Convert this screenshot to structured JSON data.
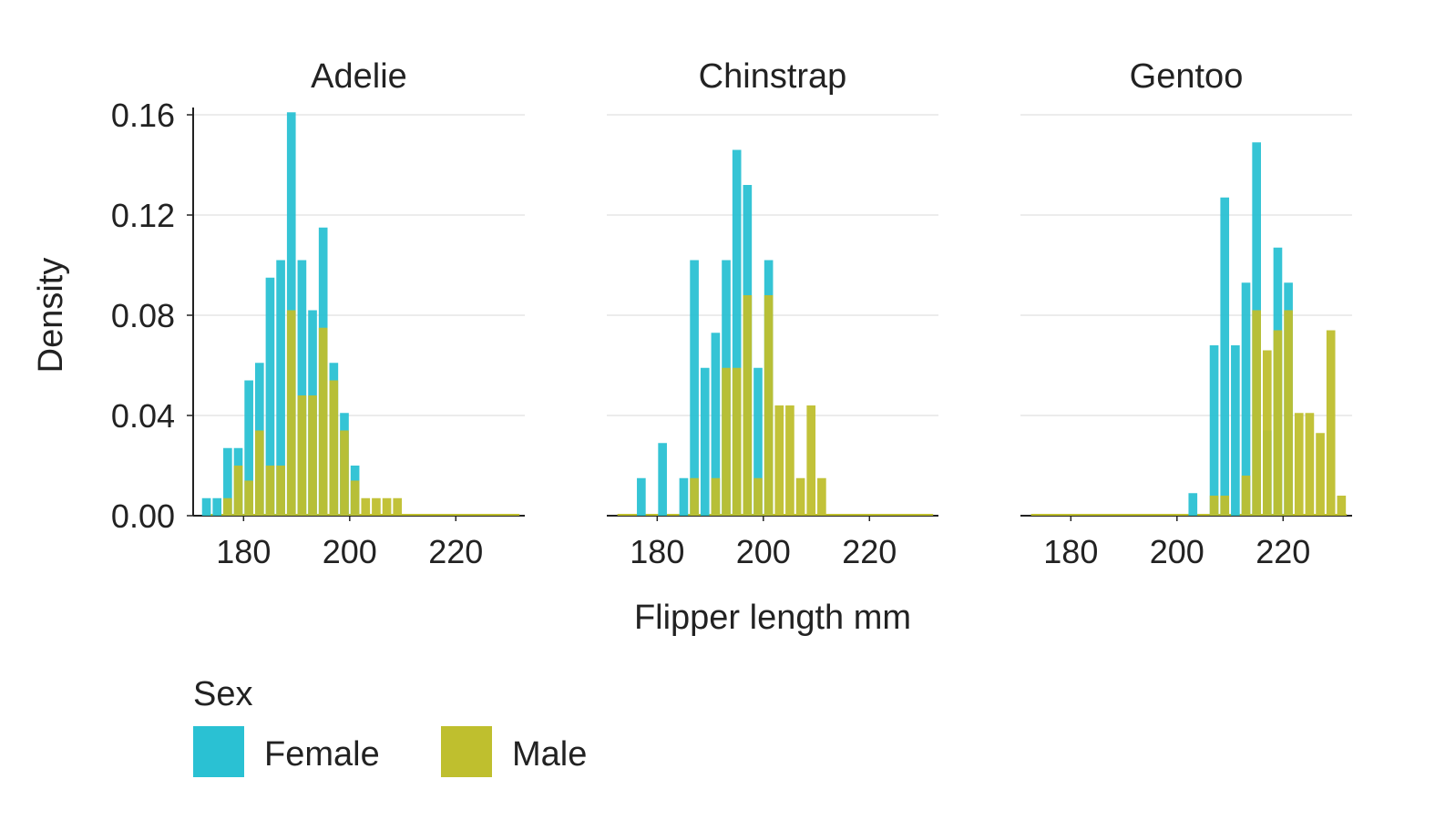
{
  "chart_data": {
    "type": "bar",
    "subtype": "faceted-histogram",
    "xlabel": "Flipper length mm",
    "ylabel": "Density",
    "ylim": [
      0,
      0.16
    ],
    "yticks": [
      "0.00",
      "0.04",
      "0.08",
      "0.12",
      "0.16"
    ],
    "xlim": [
      170.5,
      233
    ],
    "xticks": [
      "180",
      "200",
      "220"
    ],
    "bin_width": 2,
    "grid": "horizontal",
    "legend": {
      "title": "Sex",
      "position": "bottom-left",
      "entries": [
        {
          "name": "Female",
          "color": "#2AC1D3"
        },
        {
          "name": "Male",
          "color": "#BFBF2E"
        }
      ]
    },
    "facets": [
      {
        "title": "Adelie",
        "series": [
          {
            "name": "Female",
            "color": "#2AC1D3",
            "bins": [
              {
                "x": 173,
                "y": 0.007
              },
              {
                "x": 175,
                "y": 0.007
              },
              {
                "x": 177,
                "y": 0.027
              },
              {
                "x": 179,
                "y": 0.027
              },
              {
                "x": 181,
                "y": 0.054
              },
              {
                "x": 183,
                "y": 0.061
              },
              {
                "x": 185,
                "y": 0.095
              },
              {
                "x": 187,
                "y": 0.102
              },
              {
                "x": 189,
                "y": 0.161
              },
              {
                "x": 191,
                "y": 0.102
              },
              {
                "x": 193,
                "y": 0.082
              },
              {
                "x": 195,
                "y": 0.115
              },
              {
                "x": 197,
                "y": 0.061
              },
              {
                "x": 199,
                "y": 0.041
              },
              {
                "x": 201,
                "y": 0.02
              }
            ]
          },
          {
            "name": "Male",
            "color": "#BFBF2E",
            "bins": [
              {
                "x": 177,
                "y": 0.007
              },
              {
                "x": 179,
                "y": 0.02
              },
              {
                "x": 181,
                "y": 0.014
              },
              {
                "x": 183,
                "y": 0.034
              },
              {
                "x": 185,
                "y": 0.02
              },
              {
                "x": 187,
                "y": 0.02
              },
              {
                "x": 189,
                "y": 0.082
              },
              {
                "x": 191,
                "y": 0.048
              },
              {
                "x": 193,
                "y": 0.048
              },
              {
                "x": 195,
                "y": 0.075
              },
              {
                "x": 197,
                "y": 0.054
              },
              {
                "x": 199,
                "y": 0.034
              },
              {
                "x": 201,
                "y": 0.014
              },
              {
                "x": 203,
                "y": 0.007
              },
              {
                "x": 205,
                "y": 0.007
              },
              {
                "x": 207,
                "y": 0.007
              },
              {
                "x": 209,
                "y": 0.007
              }
            ]
          }
        ]
      },
      {
        "title": "Chinstrap",
        "series": [
          {
            "name": "Female",
            "color": "#2AC1D3",
            "bins": [
              {
                "x": 177,
                "y": 0.015
              },
              {
                "x": 181,
                "y": 0.029
              },
              {
                "x": 185,
                "y": 0.015
              },
              {
                "x": 187,
                "y": 0.102
              },
              {
                "x": 189,
                "y": 0.059
              },
              {
                "x": 191,
                "y": 0.073
              },
              {
                "x": 193,
                "y": 0.102
              },
              {
                "x": 195,
                "y": 0.146
              },
              {
                "x": 197,
                "y": 0.132
              },
              {
                "x": 199,
                "y": 0.059
              },
              {
                "x": 201,
                "y": 0.102
              }
            ]
          },
          {
            "name": "Male",
            "color": "#BFBF2E",
            "bins": [
              {
                "x": 187,
                "y": 0.015
              },
              {
                "x": 191,
                "y": 0.015
              },
              {
                "x": 193,
                "y": 0.059
              },
              {
                "x": 195,
                "y": 0.059
              },
              {
                "x": 197,
                "y": 0.088
              },
              {
                "x": 199,
                "y": 0.015
              },
              {
                "x": 201,
                "y": 0.088
              },
              {
                "x": 203,
                "y": 0.044
              },
              {
                "x": 205,
                "y": 0.044
              },
              {
                "x": 207,
                "y": 0.015
              },
              {
                "x": 209,
                "y": 0.044
              },
              {
                "x": 211,
                "y": 0.015
              }
            ]
          }
        ]
      },
      {
        "title": "Gentoo",
        "series": [
          {
            "name": "Female",
            "color": "#2AC1D3",
            "bins": [
              {
                "x": 203,
                "y": 0.009
              },
              {
                "x": 207,
                "y": 0.068
              },
              {
                "x": 209,
                "y": 0.127
              },
              {
                "x": 211,
                "y": 0.068
              },
              {
                "x": 213,
                "y": 0.093
              },
              {
                "x": 215,
                "y": 0.149
              },
              {
                "x": 217,
                "y": 0.034
              },
              {
                "x": 219,
                "y": 0.107
              },
              {
                "x": 221,
                "y": 0.093
              }
            ]
          },
          {
            "name": "Male",
            "color": "#BFBF2E",
            "bins": [
              {
                "x": 207,
                "y": 0.008
              },
              {
                "x": 209,
                "y": 0.008
              },
              {
                "x": 213,
                "y": 0.016
              },
              {
                "x": 215,
                "y": 0.082
              },
              {
                "x": 217,
                "y": 0.066
              },
              {
                "x": 219,
                "y": 0.074
              },
              {
                "x": 221,
                "y": 0.082
              },
              {
                "x": 223,
                "y": 0.041
              },
              {
                "x": 225,
                "y": 0.041
              },
              {
                "x": 227,
                "y": 0.033
              },
              {
                "x": 229,
                "y": 0.074
              },
              {
                "x": 231,
                "y": 0.008
              }
            ]
          }
        ]
      }
    ]
  }
}
